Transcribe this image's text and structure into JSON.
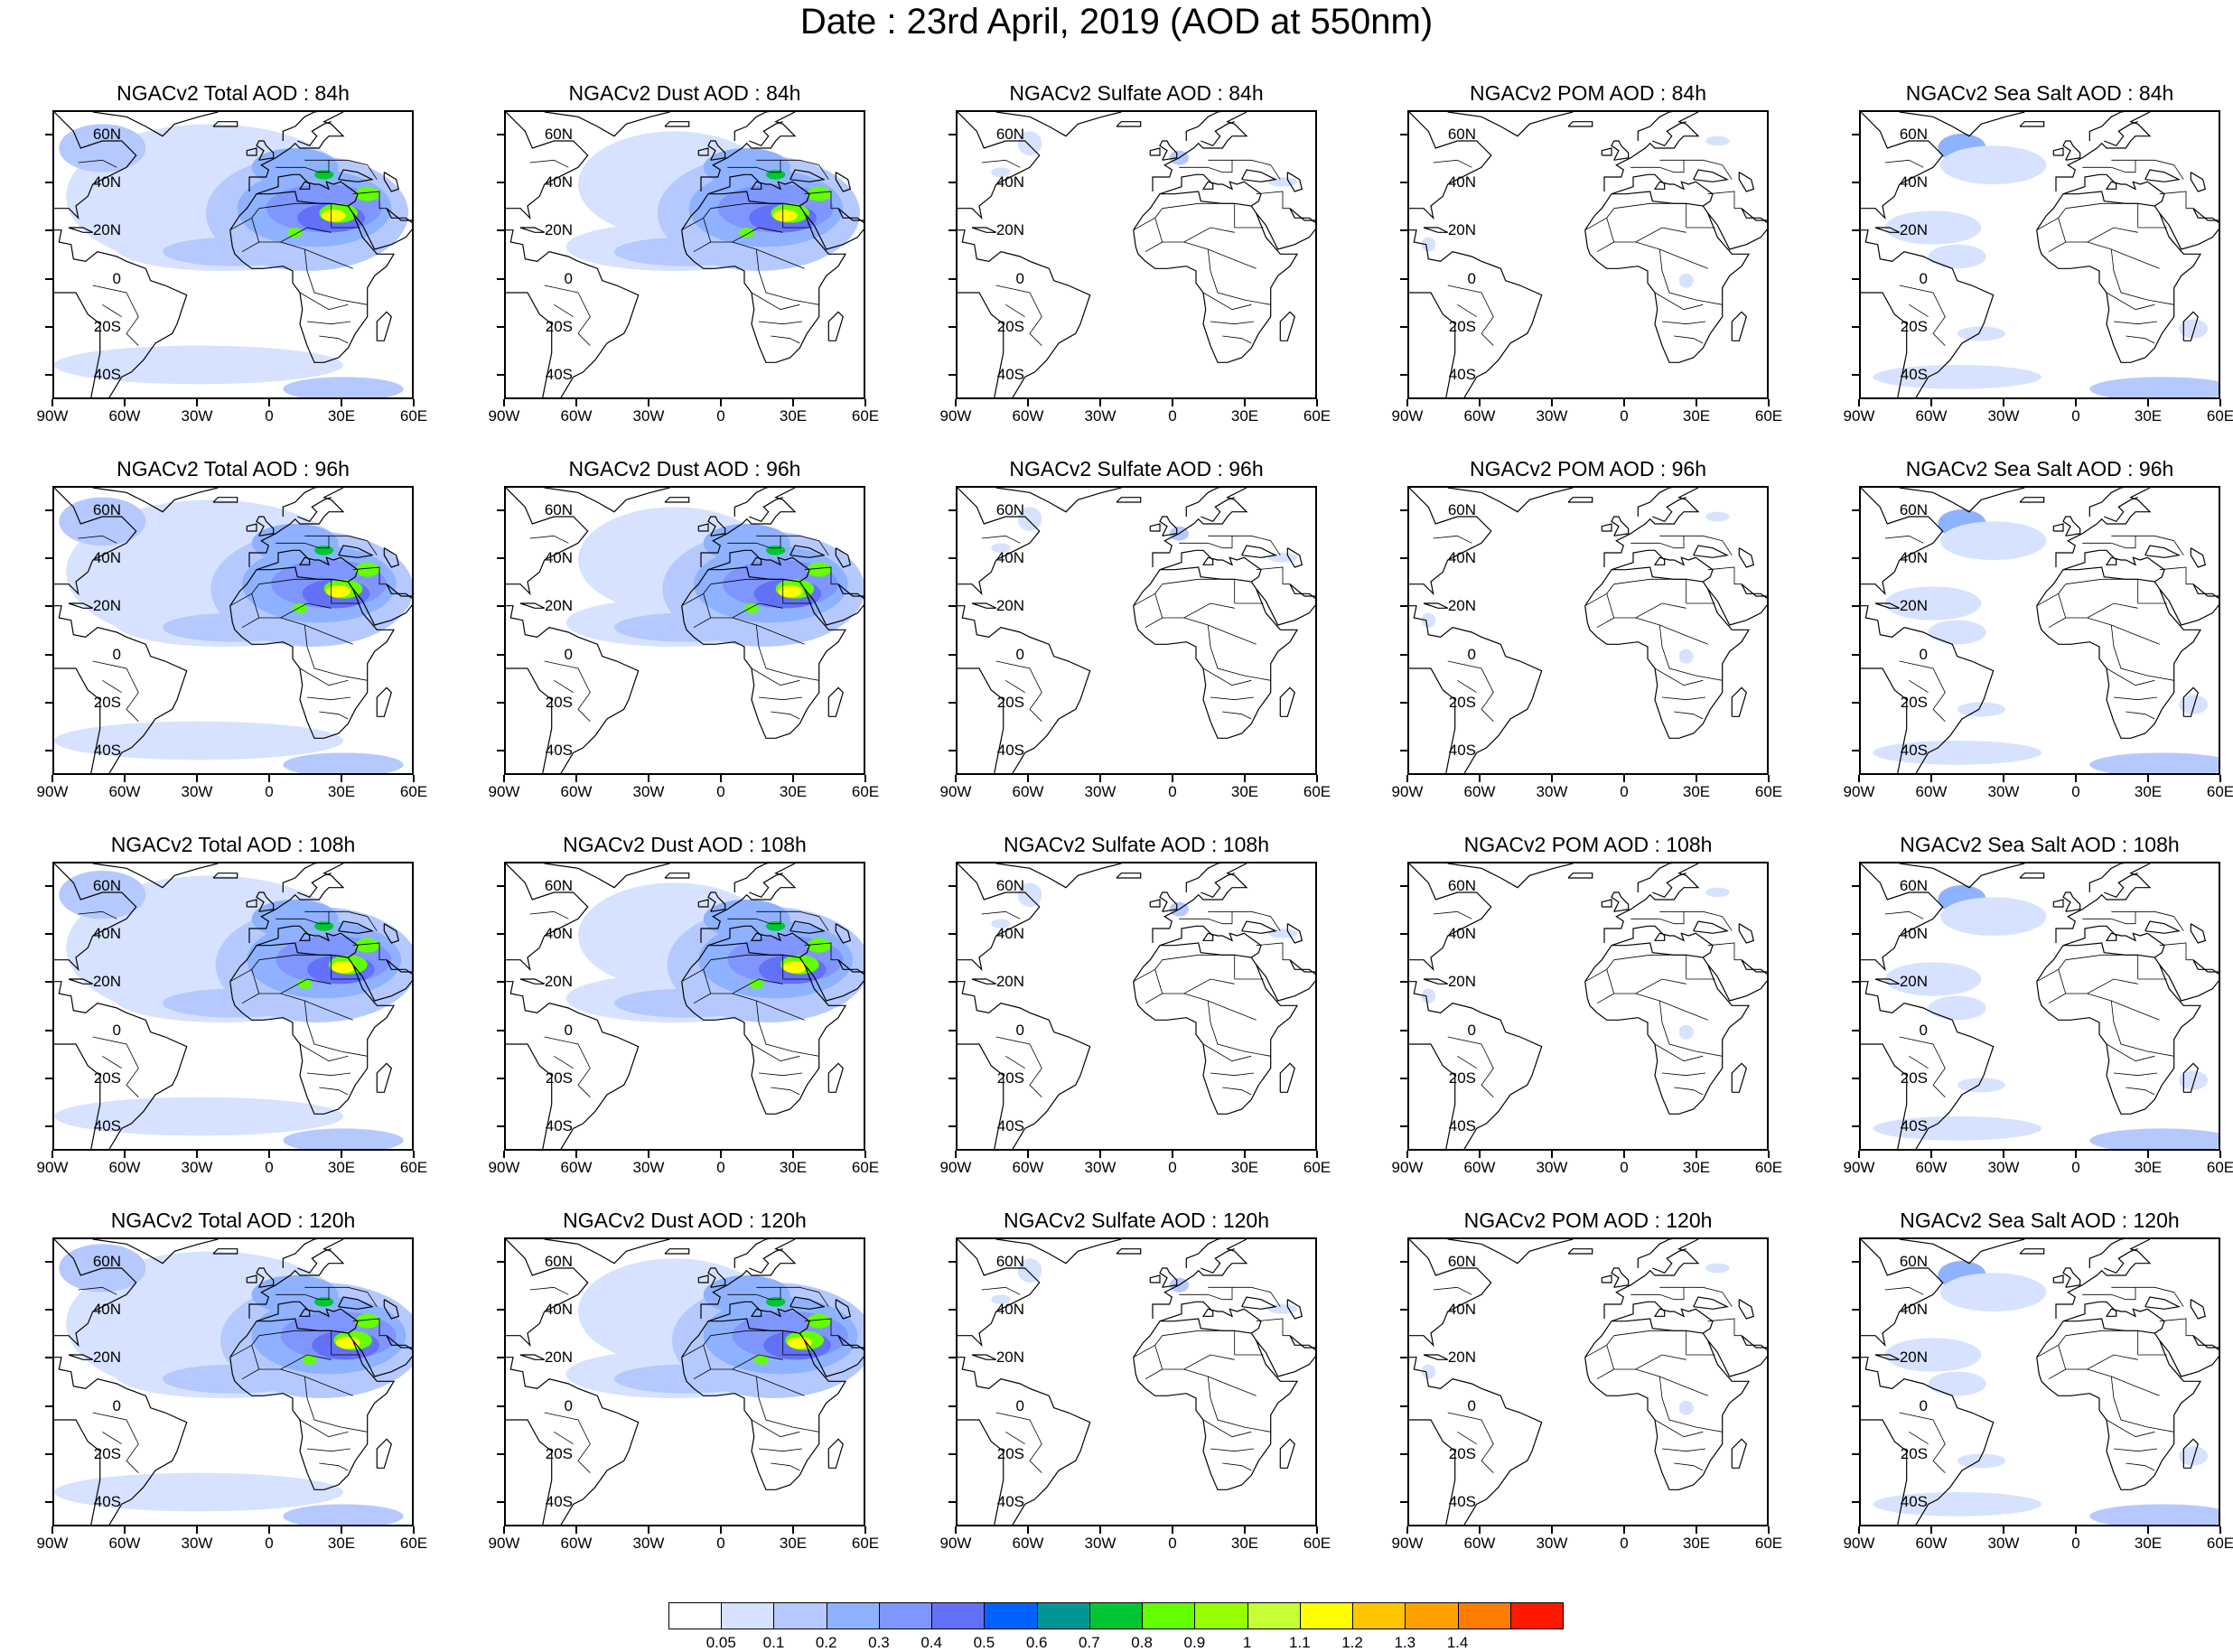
{
  "title": "Date : 23rd April, 2019 (AOD at 550nm)",
  "lat_labels": [
    "60N",
    "40N",
    "20N",
    "0",
    "20S",
    "40S"
  ],
  "lat_values": [
    60,
    40,
    20,
    0,
    -20,
    -40
  ],
  "lon_labels": [
    "90W",
    "60W",
    "30W",
    "0",
    "30E",
    "60E"
  ],
  "lon_values": [
    -90,
    -60,
    -30,
    0,
    30,
    60
  ],
  "map_extent": {
    "lon_min": -90,
    "lon_max": 60,
    "lat_min": -50,
    "lat_max": 70
  },
  "columns": [
    "total",
    "dust",
    "sulfate",
    "pom",
    "seasalt"
  ],
  "rows": [
    {
      "forecast_hour": "84h",
      "titles": [
        "NGACv2 Total AOD : 84h",
        "NGACv2 Dust AOD : 84h",
        "NGACv2 Sulfate AOD : 84h",
        "NGACv2 POM AOD : 84h",
        "NGACv2 Sea Salt AOD : 84h"
      ]
    },
    {
      "forecast_hour": "96h",
      "titles": [
        "NGACv2 Total AOD : 96h",
        "NGACv2 Dust AOD : 96h",
        "NGACv2 Sulfate AOD : 96h",
        "NGACv2 POM AOD : 96h",
        "NGACv2 Sea Salt AOD : 96h"
      ]
    },
    {
      "forecast_hour": "108h",
      "titles": [
        "NGACv2 Total AOD : 108h",
        "NGACv2 Dust AOD : 108h",
        "NGACv2 Sulfate AOD : 108h",
        "NGACv2 POM AOD : 108h",
        "NGACv2 Sea Salt AOD : 108h"
      ]
    },
    {
      "forecast_hour": "120h",
      "titles": [
        "NGACv2 Total AOD : 120h",
        "NGACv2 Dust AOD : 120h",
        "NGACv2 Sulfate AOD : 120h",
        "NGACv2 POM AOD : 120h",
        "NGACv2 Sea Salt  AOD : 120h"
      ]
    }
  ],
  "colorbar": {
    "labels": [
      "0.05",
      "0.1",
      "0.2",
      "0.3",
      "0.4",
      "0.5",
      "0.6",
      "0.7",
      "0.8",
      "0.9",
      "1",
      "1.1",
      "1.2",
      "1.3",
      "1.4"
    ],
    "colors": [
      "#ffffff",
      "#d6e2ff",
      "#b5c9ff",
      "#8eb2ff",
      "#7f96ff",
      "#6370f8",
      "#0063ff",
      "#009696",
      "#00c633",
      "#63ff00",
      "#96ff00",
      "#c6ff33",
      "#ffff00",
      "#ffc600",
      "#ffa000",
      "#ff7c00",
      "#ff1900"
    ]
  },
  "features": {
    "saharan_dust_plume": {
      "present_in": [
        "total",
        "dust"
      ],
      "peak_aod": 1.3,
      "center": [
        "25E",
        "28N"
      ]
    },
    "atlantic_dust_transport": {
      "present_in": [
        "total",
        "dust"
      ],
      "aod": 0.2
    },
    "north_atlantic_sea_salt": {
      "present_in": [
        "total",
        "seasalt"
      ],
      "aod": 0.2
    },
    "southern_ocean_sea_salt": {
      "present_in": [
        "total",
        "seasalt"
      ],
      "aod": 0.15
    }
  }
}
